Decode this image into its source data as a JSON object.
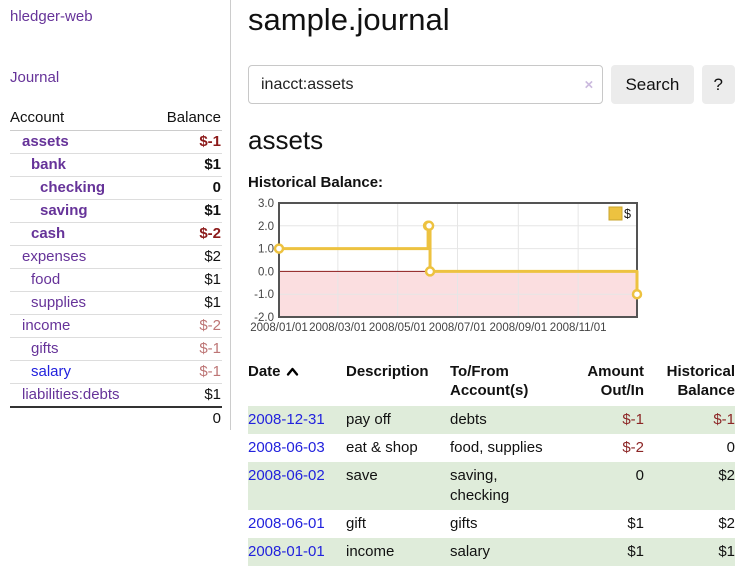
{
  "app": {
    "brand": "hledger-web",
    "nav_journal": "Journal"
  },
  "sidebar": {
    "table": {
      "col_account": "Account",
      "col_balance": "Balance",
      "rows": [
        {
          "account": "assets",
          "balance": "$-1"
        },
        {
          "account": "bank",
          "balance": "$1"
        },
        {
          "account": "checking",
          "balance": "0"
        },
        {
          "account": "saving",
          "balance": "$1"
        },
        {
          "account": "cash",
          "balance": "$-2"
        },
        {
          "account": "expenses",
          "balance": "$2"
        },
        {
          "account": "food",
          "balance": "$1"
        },
        {
          "account": "supplies",
          "balance": "$1"
        },
        {
          "account": "income",
          "balance": "$-2"
        },
        {
          "account": "gifts",
          "balance": "$-1"
        },
        {
          "account": "salary",
          "balance": "$-1"
        },
        {
          "account": "liabilities:debts",
          "balance": "$1"
        }
      ],
      "total": "0"
    }
  },
  "main": {
    "title": "sample.journal",
    "search": {
      "value": "inacct:assets",
      "clear_icon": "×",
      "button": "Search",
      "help_button": "?"
    },
    "account_heading": "assets",
    "chart_label": "Historical Balance:"
  },
  "chart_data": {
    "type": "line",
    "step": true,
    "title": "Historical Balance",
    "legend": "$",
    "series": [
      {
        "name": "$",
        "color": "#edc240",
        "points": [
          [
            "2008-01-01",
            1
          ],
          [
            "2008-06-01",
            2
          ],
          [
            "2008-06-02",
            2
          ],
          [
            "2008-06-03",
            0
          ],
          [
            "2008-12-31",
            -1
          ]
        ]
      }
    ],
    "x_start": "2008-01-01",
    "x_days": 365,
    "x_ticks": [
      [
        "2008/01/01",
        "2008-01-01"
      ],
      [
        "2008/03/01",
        "2008-03-01"
      ],
      [
        "2008/05/01",
        "2008-05-01"
      ],
      [
        "2008/07/01",
        "2008-07-01"
      ],
      [
        "2008/09/01",
        "2008-09-01"
      ],
      [
        "2008/11/01",
        "2008-11-01"
      ]
    ],
    "y_ticks": [
      [
        "3.0",
        3
      ],
      [
        "2.0",
        2
      ],
      [
        "1.0",
        1
      ],
      [
        "0.0",
        0
      ],
      [
        "-1.0",
        -1
      ],
      [
        "-2.0",
        -2
      ]
    ],
    "ylim": [
      -2,
      3
    ],
    "grid": true,
    "legend_position": "top-right",
    "negative_fill": "#fbdee0",
    "zero_line_color": "#8b1a1a",
    "grid_color": "#e6e6e6",
    "border_color": "#545454",
    "tick_color": "#444444"
  },
  "register": {
    "headers": {
      "date": "Date",
      "description": "Description",
      "tofrom1": "To/From",
      "tofrom2": "Account(s)",
      "amount1": "Amount",
      "amount2": "Out/In",
      "hist1": "Historical",
      "hist2": "Balance"
    },
    "rows": [
      {
        "date": "2008-12-31",
        "description": "pay off",
        "tofrom": "debts",
        "amount": "$-1",
        "balance": "$-1"
      },
      {
        "date": "2008-06-03",
        "description": "eat & shop",
        "tofrom": "food, supplies",
        "amount": "$-2",
        "balance": "0"
      },
      {
        "date": "2008-06-02",
        "description": "save",
        "tofrom": "saving,\nchecking",
        "amount": "0",
        "balance": "$2"
      },
      {
        "date": "2008-06-01",
        "description": "gift",
        "tofrom": "gifts",
        "amount": "$1",
        "balance": "$2"
      },
      {
        "date": "2008-01-01",
        "description": "income",
        "tofrom": "salary",
        "amount": "$1",
        "balance": "$1"
      }
    ]
  }
}
